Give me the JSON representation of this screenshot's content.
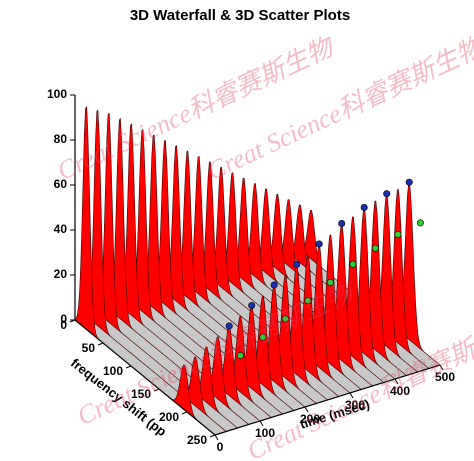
{
  "chart_data": {
    "type": "waterfall3d",
    "title": "3D Waterfall & 3D Scatter Plots",
    "xlabel": "time (msec)",
    "ylabel": "frequency shift (pp",
    "watermark": "Creat Science科睿赛斯生物",
    "xlim": [
      0,
      500
    ],
    "xticks": [
      0,
      100,
      200,
      300,
      400,
      500
    ],
    "ylim": [
      0,
      250
    ],
    "yticks": [
      0,
      50,
      100,
      150,
      200,
      250
    ],
    "zlim": [
      0,
      100
    ],
    "zticks": [
      0,
      20,
      40,
      60,
      80,
      100
    ],
    "times": [
      0,
      25,
      50,
      75,
      100,
      125,
      150,
      175,
      200,
      225,
      250,
      275,
      300,
      325,
      350,
      375,
      400,
      425,
      450,
      475,
      500
    ],
    "surface_color": "#ff0000",
    "floor_color": "#c8c8c8",
    "surfaces": [
      {
        "center": 20,
        "width": 6,
        "heights": [
          100,
          97,
          94,
          90,
          86,
          82,
          78,
          74,
          70,
          66,
          62,
          58,
          54,
          50,
          46,
          42,
          38,
          34,
          30,
          26,
          22
        ]
      },
      {
        "center": 195,
        "width": 7,
        "heights": [
          20,
          22,
          25,
          28,
          31,
          34,
          37,
          40,
          43,
          46,
          49,
          52,
          55,
          58,
          61,
          63,
          65,
          67,
          68,
          69,
          70
        ]
      }
    ],
    "scatter": [
      {
        "color": "#1a2fb0",
        "times": [
          100,
          150,
          200,
          250,
          300,
          350,
          400,
          450,
          500
        ],
        "freqs": [
          195,
          195,
          195,
          195,
          195,
          195,
          195,
          195,
          195
        ],
        "z": [
          31,
          37,
          43,
          49,
          55,
          61,
          65,
          68,
          70
        ]
      },
      {
        "color": "#33cc33",
        "times": [
          100,
          150,
          200,
          250,
          300,
          350,
          400,
          450,
          500
        ],
        "freqs": [
          215,
          215,
          215,
          215,
          215,
          215,
          215,
          215,
          215
        ],
        "z": [
          22,
          27,
          32,
          37,
          42,
          47,
          51,
          54,
          56
        ]
      }
    ]
  }
}
